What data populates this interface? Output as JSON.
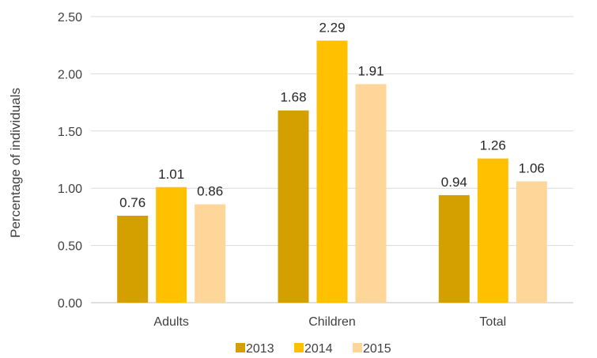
{
  "chart_data": {
    "type": "bar",
    "categories": [
      "Adults",
      "Children",
      "Total"
    ],
    "series": [
      {
        "name": "2013",
        "values": [
          0.76,
          1.68,
          0.94
        ],
        "color": "#D4A000"
      },
      {
        "name": "2014",
        "values": [
          1.01,
          2.29,
          1.26
        ],
        "color": "#FFC000"
      },
      {
        "name": "2015",
        "values": [
          0.86,
          1.91,
          1.06
        ],
        "color": "#FFD699"
      }
    ],
    "data_labels": [
      [
        "0.76",
        "1.68",
        "0.94"
      ],
      [
        "1.01",
        "2.29",
        "1.26"
      ],
      [
        "0.86",
        "1.91",
        "1.06"
      ]
    ],
    "title": "",
    "xlabel": "",
    "ylabel": "Percentage of individuals",
    "ylim": [
      0,
      2.5
    ],
    "yticks": [
      "0.00",
      "0.50",
      "1.00",
      "1.50",
      "2.00",
      "2.50"
    ],
    "grid": true,
    "legend_position": "bottom"
  }
}
